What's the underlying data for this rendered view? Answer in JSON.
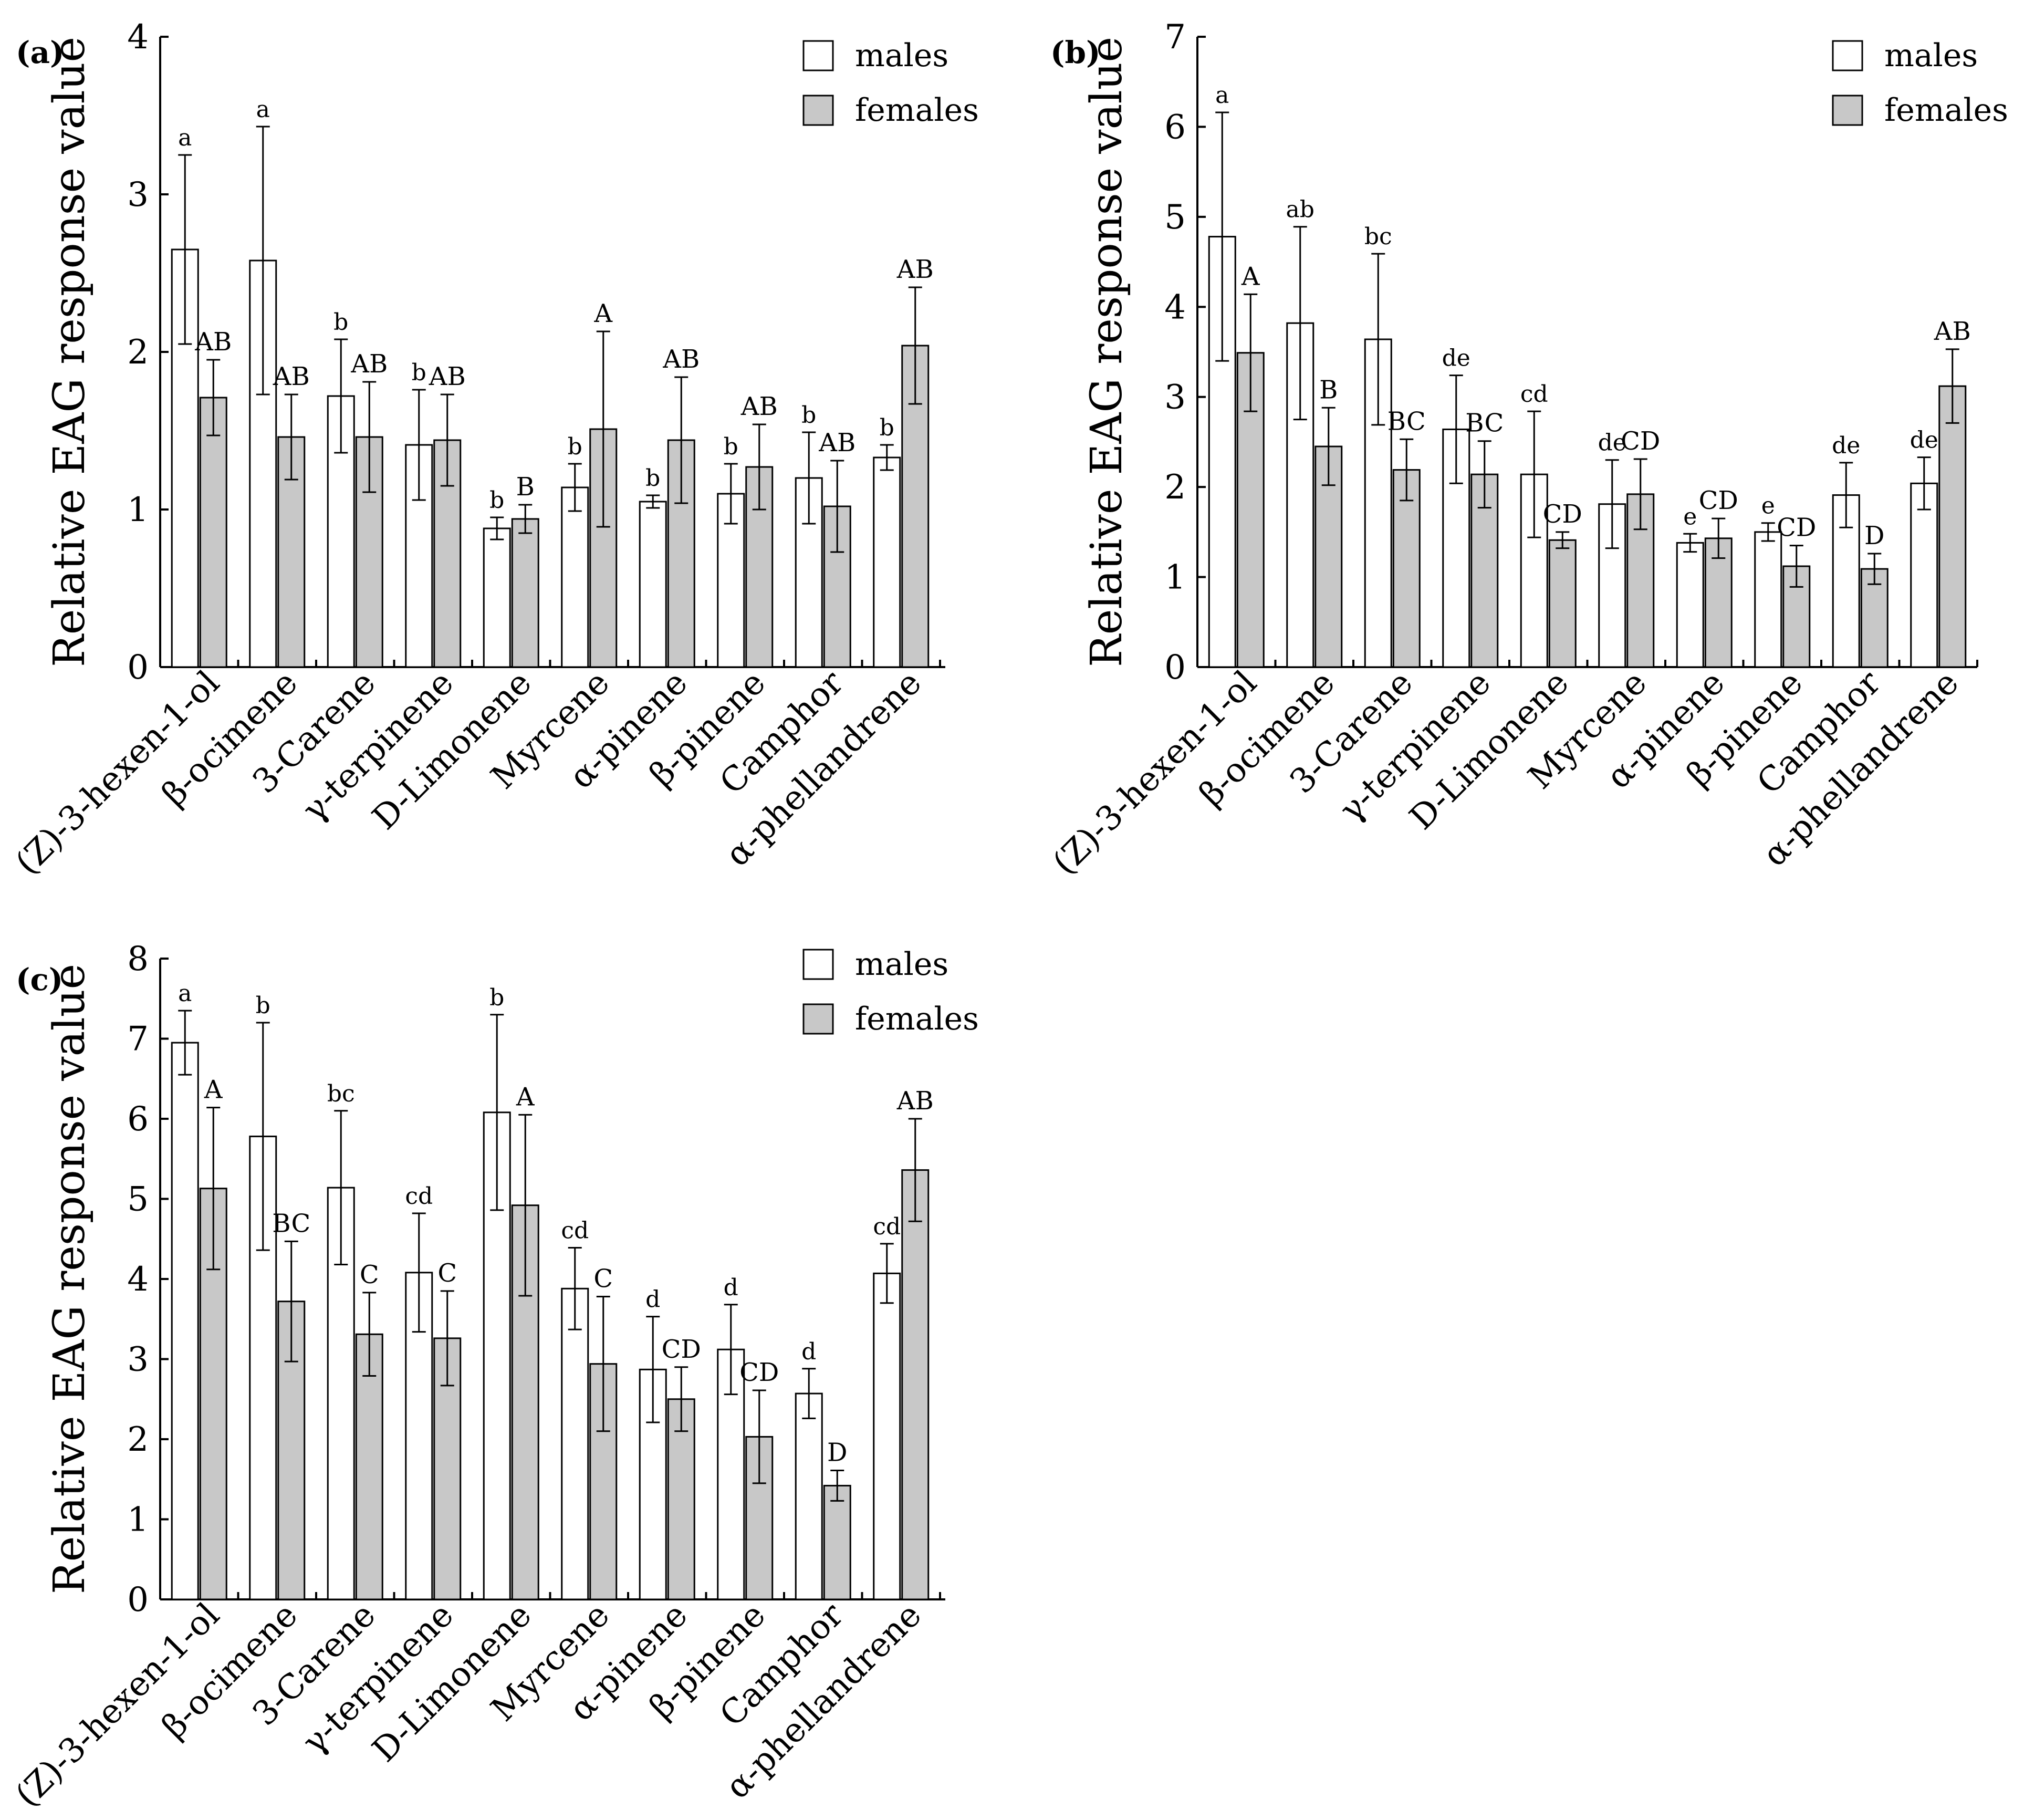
{
  "categories": [
    "(Z)-3-hexen-1-ol",
    "β-ocimene",
    "3-Carene",
    "γ-terpinene",
    "D-Limonene",
    "Myrcene",
    "α-pinene",
    "β-pinene",
    "Camphor",
    "α-phellandrene"
  ],
  "chart_data": [
    {
      "type": "bar",
      "panel_label": "(a)",
      "ylabel": "Relative EAG response value",
      "ylim": [
        0,
        4
      ],
      "yticks": [
        0,
        1,
        2,
        3,
        4
      ],
      "legend": [
        "males",
        "females"
      ],
      "legend_position": "top-right",
      "series": [
        {
          "name": "males",
          "color": "#ffffff",
          "values": [
            2.65,
            2.58,
            1.72,
            1.41,
            0.88,
            1.14,
            1.05,
            1.1,
            1.2,
            1.33
          ],
          "errors": [
            0.6,
            0.85,
            0.36,
            0.35,
            0.07,
            0.15,
            0.04,
            0.19,
            0.29,
            0.08
          ],
          "letters": [
            "a",
            "a",
            "b",
            "b",
            "b",
            "b",
            "b",
            "b",
            "b",
            "b"
          ]
        },
        {
          "name": "females",
          "color": "#c8c8c8",
          "values": [
            1.71,
            1.46,
            1.46,
            1.44,
            0.94,
            1.51,
            1.44,
            1.27,
            1.02,
            2.04
          ],
          "errors": [
            0.24,
            0.27,
            0.35,
            0.29,
            0.09,
            0.62,
            0.4,
            0.27,
            0.29,
            0.37
          ],
          "letters": [
            "AB",
            "AB",
            "AB",
            "AB",
            "B",
            "A",
            "AB",
            "AB",
            "AB",
            "AB"
          ]
        }
      ]
    },
    {
      "type": "bar",
      "panel_label": "(b)",
      "ylabel": "Relative EAG response value",
      "ylim": [
        0,
        7
      ],
      "yticks": [
        0,
        1,
        2,
        3,
        4,
        5,
        6,
        7
      ],
      "legend": [
        "males",
        "females"
      ],
      "legend_position": "top-right",
      "series": [
        {
          "name": "males",
          "color": "#ffffff",
          "values": [
            4.78,
            3.82,
            3.64,
            2.64,
            2.14,
            1.81,
            1.38,
            1.5,
            1.91,
            2.04
          ],
          "errors": [
            1.38,
            1.07,
            0.95,
            0.6,
            0.7,
            0.49,
            0.1,
            0.1,
            0.36,
            0.29
          ],
          "letters": [
            "a",
            "ab",
            "bc",
            "de",
            "cd",
            "de",
            "e",
            "e",
            "de",
            "de"
          ]
        },
        {
          "name": "females",
          "color": "#c8c8c8",
          "values": [
            3.49,
            2.45,
            2.19,
            2.14,
            1.41,
            1.92,
            1.43,
            1.12,
            1.09,
            3.12
          ],
          "errors": [
            0.65,
            0.43,
            0.34,
            0.37,
            0.09,
            0.39,
            0.22,
            0.23,
            0.17,
            0.41
          ],
          "letters": [
            "A",
            "B",
            "BC",
            "BC",
            "CD",
            "CD",
            "CD",
            "CD",
            "D",
            "AB"
          ]
        }
      ]
    },
    {
      "type": "bar",
      "panel_label": "(c)",
      "ylabel": "Relative EAG response value",
      "ylim": [
        0,
        8
      ],
      "yticks": [
        0,
        1,
        2,
        3,
        4,
        5,
        6,
        7,
        8
      ],
      "legend": [
        "males",
        "females"
      ],
      "legend_position": "top-right",
      "series": [
        {
          "name": "males",
          "color": "#ffffff",
          "values": [
            6.95,
            5.78,
            5.14,
            4.08,
            6.08,
            3.88,
            2.87,
            3.12,
            2.57,
            4.07
          ],
          "errors": [
            0.4,
            1.42,
            0.96,
            0.74,
            1.22,
            0.51,
            0.66,
            0.56,
            0.31,
            0.37
          ],
          "letters": [
            "a",
            "b",
            "bc",
            "cd",
            "b",
            "cd",
            "d",
            "d",
            "d",
            "cd"
          ]
        },
        {
          "name": "females",
          "color": "#c8c8c8",
          "values": [
            5.13,
            3.72,
            3.31,
            3.26,
            4.92,
            2.94,
            2.5,
            2.03,
            1.42,
            5.36
          ],
          "errors": [
            1.01,
            0.75,
            0.52,
            0.59,
            1.13,
            0.84,
            0.4,
            0.58,
            0.19,
            0.64
          ],
          "letters": [
            "A",
            "BC",
            "C",
            "C",
            "A",
            "C",
            "CD",
            "CD",
            "D",
            "AB"
          ]
        }
      ]
    }
  ]
}
